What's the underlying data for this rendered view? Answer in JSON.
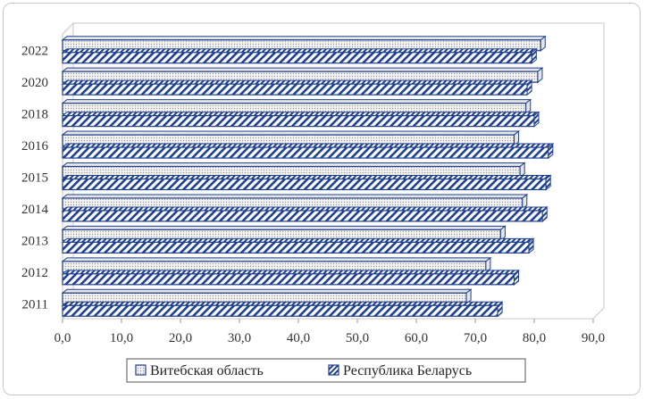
{
  "chart_data": {
    "type": "bar",
    "orientation": "horizontal",
    "style": "3d-bars",
    "categories": [
      "2011",
      "2012",
      "2013",
      "2014",
      "2015",
      "2016",
      "2018",
      "2020",
      "2022"
    ],
    "series": [
      {
        "name": "Витебская область",
        "values": [
          68.5,
          71.8,
          74.3,
          78.0,
          77.6,
          76.6,
          78.6,
          80.6,
          81.1
        ],
        "pattern": "dotted"
      },
      {
        "name": "Республика Беларусь",
        "values": [
          73.8,
          76.6,
          79.1,
          81.4,
          82.0,
          82.4,
          80.0,
          78.8,
          79.6
        ],
        "pattern": "hatched"
      }
    ],
    "xlim": [
      0,
      90
    ],
    "xticks": [
      "0,0",
      "10,0",
      "20,0",
      "30,0",
      "40,0",
      "50,0",
      "60,0",
      "70,0",
      "80,0",
      "90,0"
    ],
    "legend_position": "bottom",
    "colors": {
      "bar_edge": "#1f3f8f",
      "hatch": "#1f3f8f",
      "dot_fill": "#d8d8d8",
      "wall": "#c8c8c8"
    }
  }
}
